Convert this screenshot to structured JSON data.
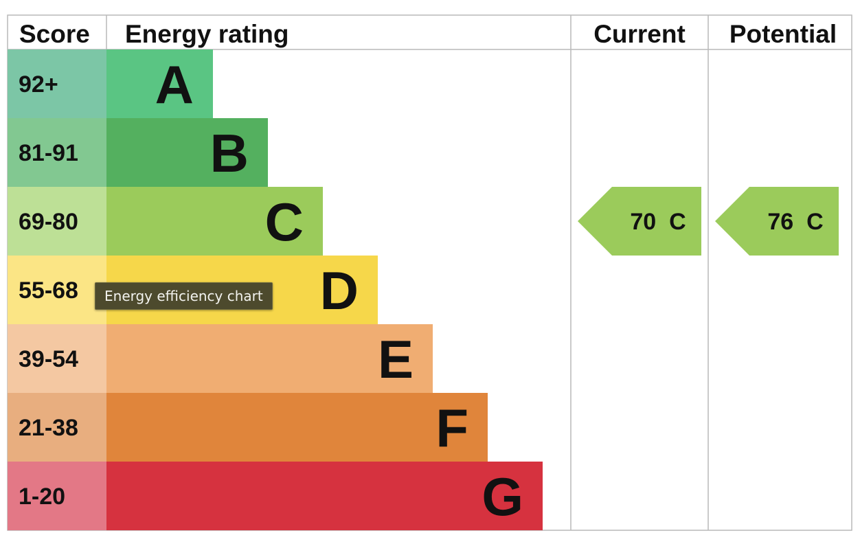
{
  "chart_data": {
    "type": "table",
    "columns": [
      "Score",
      "Energy rating",
      "Current",
      "Potential"
    ],
    "bands": [
      {
        "score": "92+",
        "letter": "A",
        "color": "#5ac583",
        "score_color": "#7cc6a6"
      },
      {
        "score": "81-91",
        "letter": "B",
        "color": "#54b05f",
        "score_color": "#82c891"
      },
      {
        "score": "69-80",
        "letter": "C",
        "color": "#9bcb5b",
        "score_color": "#bde096"
      },
      {
        "score": "55-68",
        "letter": "D",
        "color": "#f6d74a",
        "score_color": "#fbe585"
      },
      {
        "score": "39-54",
        "letter": "E",
        "color": "#f0ad72",
        "score_color": "#f4c8a2"
      },
      {
        "score": "21-38",
        "letter": "F",
        "color": "#e0853b",
        "score_color": "#e8ae7f"
      },
      {
        "score": "1-20",
        "letter": "G",
        "color": "#d6323f",
        "score_color": "#e37886"
      }
    ],
    "current": {
      "value": 70,
      "letter": "C",
      "color": "#9bcb5b"
    },
    "potential": {
      "value": 76,
      "letter": "C",
      "color": "#9bcb5b"
    }
  },
  "tooltip": {
    "text": "Energy efficiency chart"
  }
}
